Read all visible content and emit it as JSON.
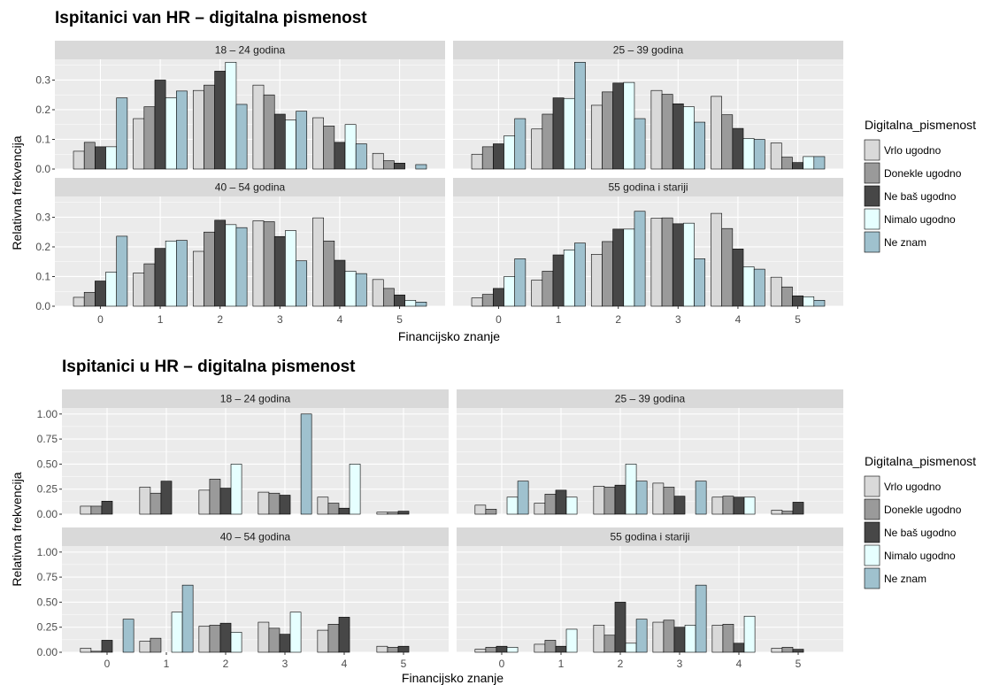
{
  "chart_data": [
    {
      "type": "bar",
      "title": "Ispitanici van HR – digitalna pismenost",
      "xlabel": "Financijsko znanje",
      "ylabel": "Relativna frekvencija",
      "categories": [
        "0",
        "1",
        "2",
        "3",
        "4",
        "5"
      ],
      "ylim": [
        0,
        0.37
      ],
      "yticks": [
        "0.0",
        "0.1",
        "0.2",
        "0.3"
      ],
      "ytick_values": [
        0,
        0.1,
        0.2,
        0.3
      ],
      "legend_title": "Digitalna_pismenost",
      "legend_position": "right",
      "grid": true,
      "panels": [
        {
          "label": "18 – 24 godina",
          "series": [
            {
              "name": "Vrlo ugodno",
              "values": [
                0.06,
                0.17,
                0.265,
                0.283,
                0.173,
                0.053
              ]
            },
            {
              "name": "Donekle ugodno",
              "values": [
                0.09,
                0.21,
                0.283,
                0.25,
                0.145,
                0.028
              ]
            },
            {
              "name": "Ne baš ugodno",
              "values": [
                0.075,
                0.3,
                0.33,
                0.185,
                0.09,
                0.02
              ]
            },
            {
              "name": "Nimalo ugodno",
              "values": [
                0.075,
                0.24,
                0.36,
                0.165,
                0.15,
                0
              ]
            },
            {
              "name": "Ne znam",
              "values": [
                0.24,
                0.263,
                0.218,
                0.195,
                0.085,
                0.015
              ]
            }
          ]
        },
        {
          "label": "25 – 39 godina",
          "series": [
            {
              "name": "Vrlo ugodno",
              "values": [
                0.05,
                0.135,
                0.215,
                0.265,
                0.245,
                0.088
              ]
            },
            {
              "name": "Donekle ugodno",
              "values": [
                0.075,
                0.185,
                0.26,
                0.252,
                0.183,
                0.04
              ]
            },
            {
              "name": "Ne baš ugodno",
              "values": [
                0.085,
                0.24,
                0.29,
                0.22,
                0.137,
                0.022
              ]
            },
            {
              "name": "Nimalo ugodno",
              "values": [
                0.112,
                0.238,
                0.292,
                0.21,
                0.103,
                0.042
              ]
            },
            {
              "name": "Ne znam",
              "values": [
                0.17,
                0.36,
                0.17,
                0.158,
                0.1,
                0.042
              ]
            }
          ]
        },
        {
          "label": "40 – 54 godina",
          "series": [
            {
              "name": "Vrlo ugodno",
              "values": [
                0.03,
                0.112,
                0.185,
                0.288,
                0.298,
                0.09
              ]
            },
            {
              "name": "Donekle ugodno",
              "values": [
                0.047,
                0.143,
                0.25,
                0.285,
                0.22,
                0.06
              ]
            },
            {
              "name": "Ne baš ugodno",
              "values": [
                0.085,
                0.195,
                0.29,
                0.235,
                0.155,
                0.038
              ]
            },
            {
              "name": "Nimalo ugodno",
              "values": [
                0.115,
                0.22,
                0.275,
                0.255,
                0.118,
                0.02
              ]
            },
            {
              "name": "Ne znam",
              "values": [
                0.236,
                0.222,
                0.265,
                0.153,
                0.11,
                0.014
              ]
            }
          ]
        },
        {
          "label": "55 godina i stariji",
          "series": [
            {
              "name": "Vrlo ugodno",
              "values": [
                0.028,
                0.088,
                0.175,
                0.297,
                0.313,
                0.098
              ]
            },
            {
              "name": "Donekle ugodno",
              "values": [
                0.04,
                0.118,
                0.218,
                0.298,
                0.262,
                0.065
              ]
            },
            {
              "name": "Ne baš ugodno",
              "values": [
                0.06,
                0.173,
                0.26,
                0.278,
                0.193,
                0.035
              ]
            },
            {
              "name": "Nimalo ugodno",
              "values": [
                0.1,
                0.19,
                0.26,
                0.28,
                0.133,
                0.032
              ]
            },
            {
              "name": "Ne znam",
              "values": [
                0.16,
                0.213,
                0.32,
                0.16,
                0.125,
                0.02
              ]
            }
          ]
        }
      ]
    },
    {
      "type": "bar",
      "title": "Ispitanici u HR – digitalna pismenost",
      "xlabel": "Financijsko znanje",
      "ylabel": "Relativna frekvencija",
      "categories": [
        "0",
        "1",
        "2",
        "3",
        "4",
        "5"
      ],
      "ylim": [
        0,
        1.06
      ],
      "yticks": [
        "0.00",
        "0.25",
        "0.50",
        "0.75",
        "1.00"
      ],
      "ytick_values": [
        0,
        0.25,
        0.5,
        0.75,
        1.0
      ],
      "legend_title": "Digitalna_pismenost",
      "legend_position": "right",
      "grid": true,
      "panels": [
        {
          "label": "18 – 24 godina",
          "series": [
            {
              "name": "Vrlo ugodno",
              "values": [
                0.08,
                0.27,
                0.24,
                0.22,
                0.17,
                0.02
              ]
            },
            {
              "name": "Donekle ugodno",
              "values": [
                0.08,
                0.21,
                0.35,
                0.21,
                0.11,
                0.02
              ]
            },
            {
              "name": "Ne baš ugodno",
              "values": [
                0.13,
                0.33,
                0.26,
                0.19,
                0.06,
                0.03
              ]
            },
            {
              "name": "Nimalo ugodno",
              "values": [
                0,
                0,
                0.5,
                0,
                0.5,
                0
              ]
            },
            {
              "name": "Ne znam",
              "values": [
                0,
                0,
                0,
                1.0,
                0,
                0
              ]
            }
          ]
        },
        {
          "label": "25 – 39 godina",
          "series": [
            {
              "name": "Vrlo ugodno",
              "values": [
                0.09,
                0.11,
                0.28,
                0.31,
                0.17,
                0.04
              ]
            },
            {
              "name": "Donekle ugodno",
              "values": [
                0.05,
                0.2,
                0.27,
                0.27,
                0.18,
                0.03
              ]
            },
            {
              "name": "Ne baš ugodno",
              "values": [
                0,
                0.24,
                0.29,
                0.18,
                0.17,
                0.12
              ]
            },
            {
              "name": "Nimalo ugodno",
              "values": [
                0.17,
                0.17,
                0.5,
                0,
                0.17,
                0
              ]
            },
            {
              "name": "Ne znam",
              "values": [
                0.33,
                0,
                0.33,
                0.33,
                0,
                0
              ]
            }
          ]
        },
        {
          "label": "40 – 54 godina",
          "series": [
            {
              "name": "Vrlo ugodno",
              "values": [
                0.04,
                0.11,
                0.26,
                0.3,
                0.22,
                0.06
              ]
            },
            {
              "name": "Donekle ugodno",
              "values": [
                0.01,
                0.14,
                0.27,
                0.24,
                0.28,
                0.05
              ]
            },
            {
              "name": "Ne baš ugodno",
              "values": [
                0.12,
                0,
                0.29,
                0.18,
                0.35,
                0.06
              ]
            },
            {
              "name": "Nimalo ugodno",
              "values": [
                0,
                0.4,
                0.2,
                0.4,
                0,
                0
              ]
            },
            {
              "name": "Ne znam",
              "values": [
                0.33,
                0.67,
                0,
                0,
                0,
                0
              ]
            }
          ]
        },
        {
          "label": "55 godina i stariji",
          "series": [
            {
              "name": "Vrlo ugodno",
              "values": [
                0.03,
                0.08,
                0.27,
                0.3,
                0.27,
                0.04
              ]
            },
            {
              "name": "Donekle ugodno",
              "values": [
                0.05,
                0.12,
                0.17,
                0.32,
                0.28,
                0.05
              ]
            },
            {
              "name": "Ne baš ugodno",
              "values": [
                0.06,
                0.06,
                0.5,
                0.25,
                0.09,
                0.03
              ]
            },
            {
              "name": "Nimalo ugodno",
              "values": [
                0.05,
                0.23,
                0.09,
                0.27,
                0.36,
                0
              ]
            },
            {
              "name": "Ne znam",
              "values": [
                0,
                0,
                0.33,
                0.67,
                0,
                0
              ]
            }
          ]
        }
      ]
    }
  ],
  "legend": {
    "title": "Digitalna_pismenost",
    "items": [
      {
        "label": "Vrlo ugodno",
        "color": "#d9d9d9"
      },
      {
        "label": "Donekle ugodno",
        "color": "#9a9a9a"
      },
      {
        "label": "Ne baš ugodno",
        "color": "#474747"
      },
      {
        "label": "Nimalo ugodno",
        "color": "#e6ffff"
      },
      {
        "label": "Ne znam",
        "color": "#9fc1ce"
      }
    ]
  },
  "colors": {
    "panel_background": "#ebebeb",
    "strip_background": "#d9d9d9",
    "gridline": "#ffffff",
    "bar_outline": "#000000"
  }
}
